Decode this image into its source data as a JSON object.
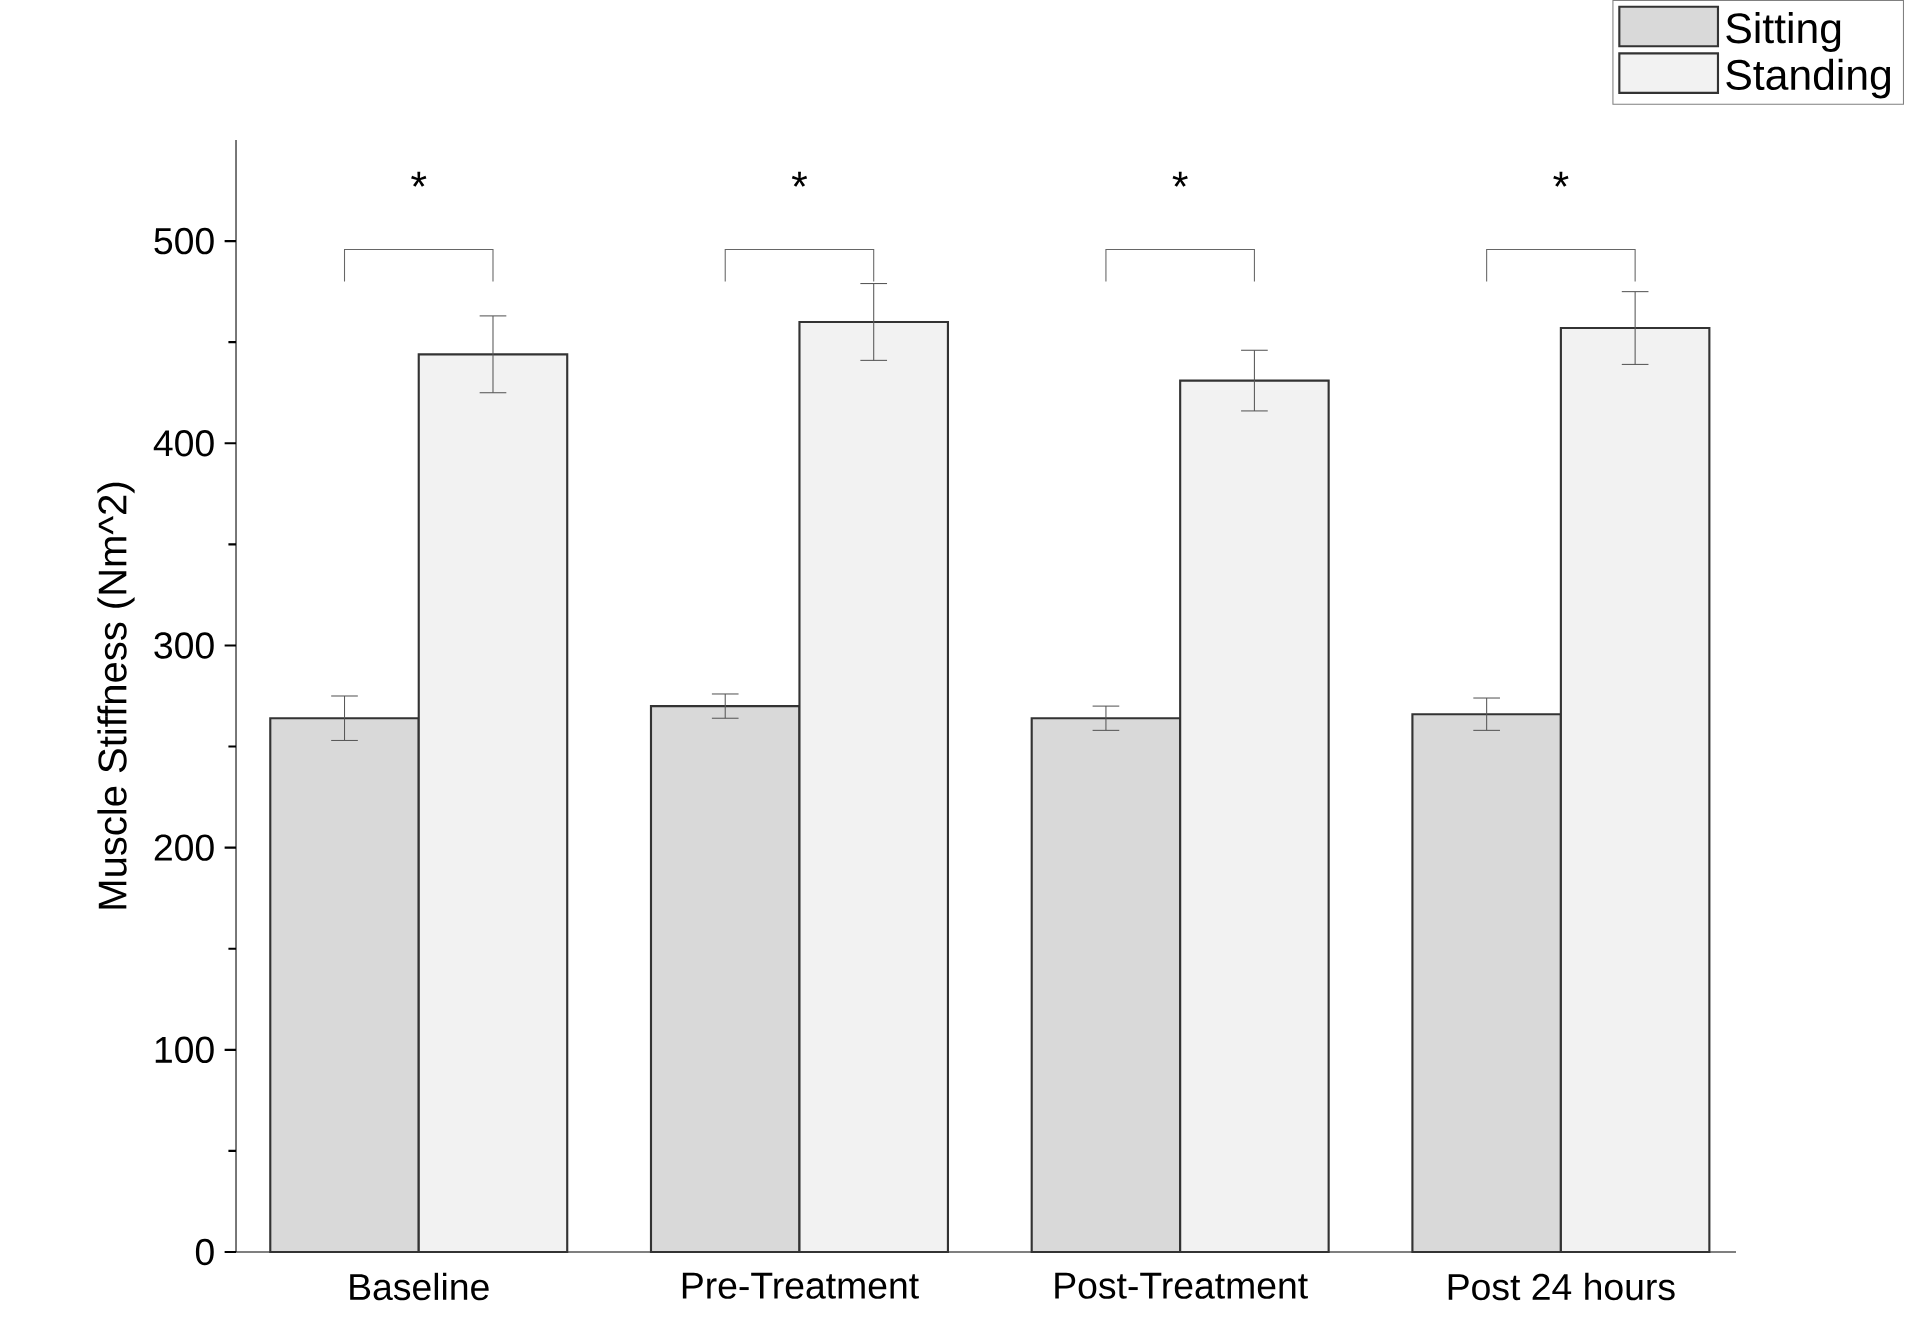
{
  "chart_data": {
    "type": "bar",
    "ylabel": "Muscle Stiffness (Nm^2)",
    "categories": [
      "Baseline",
      "Pre-Treatment",
      "Post-Treatment",
      "Post 24 hours"
    ],
    "series": [
      {
        "name": "Sitting",
        "color": "#d9d9d9",
        "values": [
          264,
          270,
          264,
          266
        ],
        "errors": [
          11,
          6,
          6,
          8
        ]
      },
      {
        "name": "Standing",
        "color": "#f2f2f2",
        "values": [
          444,
          460,
          431,
          457
        ],
        "errors": [
          19,
          19,
          15,
          18
        ]
      }
    ],
    "ylim": [
      0,
      550
    ],
    "yticks": [
      0,
      100,
      200,
      300,
      400,
      500
    ],
    "grid": false,
    "legend": "top right",
    "annotations": [
      "*",
      "*",
      "*",
      "*"
    ]
  }
}
